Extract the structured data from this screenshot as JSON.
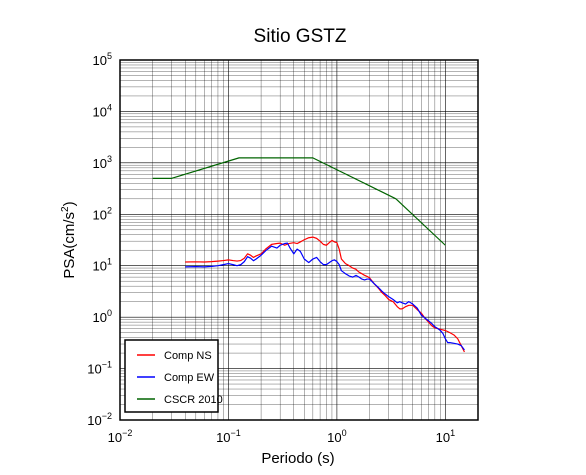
{
  "chart_data": {
    "type": "line",
    "title": "Sitio GSTZ",
    "xlabel": "Periodo (s)",
    "ylabel": "PSA(cm/s",
    "ylabel_sup": "2",
    "ylabel_close": ")",
    "xscale": "log",
    "yscale": "log",
    "xlim": [
      0.01,
      20
    ],
    "ylim": [
      0.01,
      100000
    ],
    "x_ticks": [
      {
        "base": "10",
        "exp": "−2"
      },
      {
        "base": "10",
        "exp": "−1"
      },
      {
        "base": "10",
        "exp": "0"
      },
      {
        "base": "10",
        "exp": "1"
      }
    ],
    "y_ticks": [
      {
        "base": "10",
        "exp": "−2"
      },
      {
        "base": "10",
        "exp": "−1"
      },
      {
        "base": "10",
        "exp": "0"
      },
      {
        "base": "10",
        "exp": "1"
      },
      {
        "base": "10",
        "exp": "2"
      },
      {
        "base": "10",
        "exp": "3"
      },
      {
        "base": "10",
        "exp": "4"
      },
      {
        "base": "10",
        "exp": "5"
      }
    ],
    "grid": true,
    "legend_position": "bottom-left",
    "series": [
      {
        "name": "Comp NS",
        "color": "#ff0000",
        "points": [
          [
            0.04,
            11.8
          ],
          [
            0.05,
            11.9
          ],
          [
            0.06,
            11.8
          ],
          [
            0.07,
            12.0
          ],
          [
            0.08,
            12.3
          ],
          [
            0.09,
            12.6
          ],
          [
            0.1,
            13.0
          ],
          [
            0.11,
            12.6
          ],
          [
            0.12,
            12.3
          ],
          [
            0.13,
            12.6
          ],
          [
            0.14,
            14.0
          ],
          [
            0.15,
            17.0
          ],
          [
            0.16,
            16.0
          ],
          [
            0.17,
            14.5
          ],
          [
            0.18,
            15.5
          ],
          [
            0.2,
            17.0
          ],
          [
            0.22,
            21.0
          ],
          [
            0.25,
            26.0
          ],
          [
            0.28,
            27.0
          ],
          [
            0.3,
            27.5
          ],
          [
            0.33,
            25.0
          ],
          [
            0.36,
            27.0
          ],
          [
            0.4,
            28.0
          ],
          [
            0.43,
            27.0
          ],
          [
            0.46,
            29.0
          ],
          [
            0.5,
            32.0
          ],
          [
            0.55,
            35.0
          ],
          [
            0.6,
            36.0
          ],
          [
            0.65,
            34.0
          ],
          [
            0.7,
            30.0
          ],
          [
            0.75,
            26.0
          ],
          [
            0.8,
            25.0
          ],
          [
            0.85,
            28.0
          ],
          [
            0.9,
            31.0
          ],
          [
            0.95,
            29.0
          ],
          [
            1.0,
            28.0
          ],
          [
            1.05,
            21.0
          ],
          [
            1.1,
            13.5
          ],
          [
            1.2,
            11.0
          ],
          [
            1.3,
            10.0
          ],
          [
            1.4,
            9.0
          ],
          [
            1.5,
            8.5
          ],
          [
            1.6,
            7.5
          ],
          [
            1.7,
            7.0
          ],
          [
            1.8,
            6.5
          ],
          [
            1.9,
            6.2
          ],
          [
            2.0,
            5.8
          ],
          [
            2.2,
            4.5
          ],
          [
            2.4,
            3.7
          ],
          [
            2.6,
            3.0
          ],
          [
            2.8,
            2.6
          ],
          [
            3.0,
            2.2
          ],
          [
            3.3,
            2.0
          ],
          [
            3.6,
            1.6
          ],
          [
            3.8,
            1.45
          ],
          [
            4.0,
            1.45
          ],
          [
            4.3,
            1.6
          ],
          [
            4.6,
            1.7
          ],
          [
            5.0,
            1.7
          ],
          [
            5.5,
            1.4
          ],
          [
            6.0,
            1.2
          ],
          [
            6.5,
            0.95
          ],
          [
            7.0,
            0.8
          ],
          [
            7.5,
            0.68
          ],
          [
            8.0,
            0.62
          ],
          [
            8.5,
            0.6
          ],
          [
            9.0,
            0.58
          ],
          [
            10.0,
            0.55
          ],
          [
            11.0,
            0.5
          ],
          [
            12.0,
            0.45
          ],
          [
            13.0,
            0.38
          ],
          [
            14.0,
            0.28
          ],
          [
            15.0,
            0.21
          ]
        ]
      },
      {
        "name": "Comp EW",
        "color": "#0000ff",
        "points": [
          [
            0.04,
            9.5
          ],
          [
            0.05,
            9.6
          ],
          [
            0.06,
            9.5
          ],
          [
            0.07,
            9.7
          ],
          [
            0.08,
            10.0
          ],
          [
            0.09,
            10.5
          ],
          [
            0.1,
            11.0
          ],
          [
            0.11,
            10.5
          ],
          [
            0.12,
            10.0
          ],
          [
            0.13,
            10.5
          ],
          [
            0.14,
            12.0
          ],
          [
            0.15,
            15.0
          ],
          [
            0.16,
            14.0
          ],
          [
            0.17,
            12.5
          ],
          [
            0.18,
            13.5
          ],
          [
            0.2,
            16.0
          ],
          [
            0.22,
            19.5
          ],
          [
            0.25,
            24.0
          ],
          [
            0.28,
            22.0
          ],
          [
            0.3,
            25.0
          ],
          [
            0.33,
            27.0
          ],
          [
            0.35,
            27.5
          ],
          [
            0.37,
            22.0
          ],
          [
            0.4,
            17.0
          ],
          [
            0.43,
            21.0
          ],
          [
            0.46,
            19.0
          ],
          [
            0.5,
            13.5
          ],
          [
            0.55,
            11.5
          ],
          [
            0.6,
            13.5
          ],
          [
            0.65,
            14.5
          ],
          [
            0.7,
            12.0
          ],
          [
            0.75,
            10.5
          ],
          [
            0.8,
            10.5
          ],
          [
            0.85,
            11.5
          ],
          [
            0.9,
            12.5
          ],
          [
            0.95,
            13.0
          ],
          [
            1.0,
            12.0
          ],
          [
            1.05,
            10.5
          ],
          [
            1.1,
            8.0
          ],
          [
            1.2,
            7.0
          ],
          [
            1.3,
            6.3
          ],
          [
            1.4,
            6.0
          ],
          [
            1.5,
            6.5
          ],
          [
            1.6,
            6.0
          ],
          [
            1.7,
            5.5
          ],
          [
            1.8,
            5.3
          ],
          [
            1.9,
            5.5
          ],
          [
            2.0,
            5.5
          ],
          [
            2.2,
            4.5
          ],
          [
            2.4,
            3.8
          ],
          [
            2.6,
            3.2
          ],
          [
            2.8,
            2.8
          ],
          [
            3.0,
            2.5
          ],
          [
            3.3,
            2.2
          ],
          [
            3.6,
            1.9
          ],
          [
            3.8,
            2.0
          ],
          [
            4.0,
            1.9
          ],
          [
            4.3,
            1.8
          ],
          [
            4.6,
            2.0
          ],
          [
            5.0,
            1.8
          ],
          [
            5.5,
            1.5
          ],
          [
            6.0,
            1.1
          ],
          [
            6.5,
            0.95
          ],
          [
            7.0,
            0.85
          ],
          [
            7.5,
            0.75
          ],
          [
            8.0,
            0.65
          ],
          [
            8.5,
            0.6
          ],
          [
            9.0,
            0.55
          ],
          [
            9.5,
            0.48
          ],
          [
            10.0,
            0.38
          ],
          [
            10.5,
            0.32
          ],
          [
            11.0,
            0.32
          ],
          [
            12.0,
            0.31
          ],
          [
            13.0,
            0.3
          ],
          [
            14.0,
            0.28
          ],
          [
            15.0,
            0.23
          ]
        ]
      },
      {
        "name": "CSCR 2010",
        "color": "#006400",
        "points": [
          [
            0.02,
            500
          ],
          [
            0.03,
            500
          ],
          [
            0.125,
            1250
          ],
          [
            0.6,
            1250
          ],
          [
            3.5,
            200
          ],
          [
            10,
            25
          ]
        ]
      }
    ]
  }
}
